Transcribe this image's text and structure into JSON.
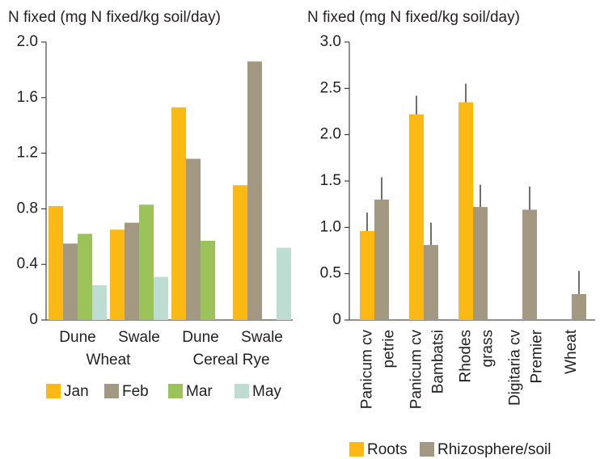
{
  "chart_data": [
    {
      "type": "bar",
      "ylabel": "N fixed (mg N fixed/kg soil/day)",
      "categories": [
        "Dune",
        "Swale",
        "Dune",
        "Swale"
      ],
      "groups": [
        "Wheat",
        "Cereal Rye"
      ],
      "series": [
        {
          "name": "Jan",
          "color": "#fdb913",
          "values": [
            0.82,
            0.65,
            1.53,
            0.97
          ]
        },
        {
          "name": "Feb",
          "color": "#a39882",
          "values": [
            0.55,
            0.7,
            1.16,
            1.86
          ]
        },
        {
          "name": "Mar",
          "color": "#9bc359",
          "values": [
            0.62,
            0.83,
            0.57,
            null
          ]
        },
        {
          "name": "May",
          "color": "#bddcd2",
          "values": [
            0.25,
            0.31,
            null,
            0.52
          ]
        }
      ],
      "ylim": [
        0,
        2
      ],
      "yticks": [
        0,
        0.4,
        0.8,
        1.2,
        1.6,
        {
          "value": 2,
          "label": "2.0"
        }
      ]
    },
    {
      "type": "bar",
      "ylabel": "N fixed (mg N fixed/kg soil/day)",
      "categories": [
        [
          "Panicum cv",
          "petrie"
        ],
        [
          "Panicum cv",
          "Bambatsi"
        ],
        [
          "Rhodes",
          "grass"
        ],
        [
          "Digitaria cv",
          "Premier"
        ],
        [
          "Wheat"
        ]
      ],
      "series": [
        {
          "name": "Roots",
          "color": "#fdb913",
          "values": [
            0.96,
            2.22,
            2.35,
            null,
            null
          ],
          "errors": [
            0.2,
            0.2,
            0.2,
            null,
            null
          ]
        },
        {
          "name": "Rhizosphere/soil",
          "color": "#a39882",
          "values": [
            1.3,
            0.81,
            1.22,
            1.19,
            0.28
          ],
          "errors": [
            0.24,
            0.24,
            0.24,
            0.25,
            0.25
          ]
        }
      ],
      "ylim": [
        0,
        3
      ],
      "yticks": [
        0,
        0.5,
        {
          "value": 1,
          "label": "1.0"
        },
        1.5,
        {
          "value": 2,
          "label": "2.0"
        },
        2.5,
        {
          "value": 3,
          "label": "3.0"
        }
      ]
    }
  ]
}
